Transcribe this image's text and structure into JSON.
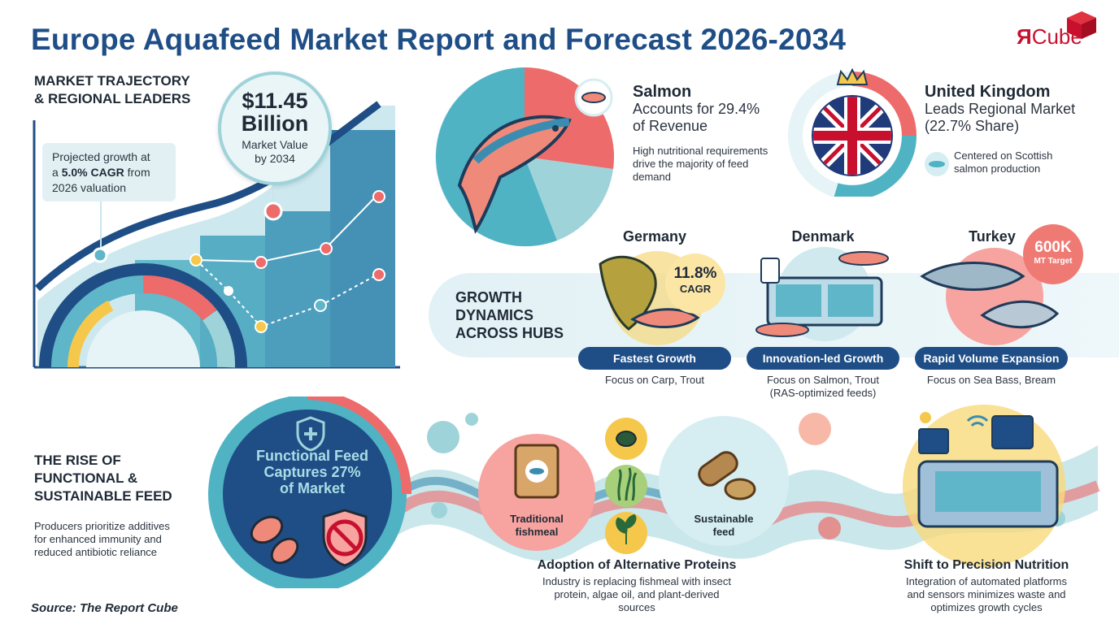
{
  "header": {
    "title": "Europe Aquafeed Market Report and Forecast 2026-2034",
    "logo_mark": "Я",
    "logo_word": "Cube"
  },
  "trajectory": {
    "heading_line1": "MARKET TRAJECTORY",
    "heading_line2": "& REGIONAL LEADERS",
    "value": "$11.45",
    "value_unit": "Billion",
    "value_label_line1": "Market Value",
    "value_label_line2": "by 2034",
    "callout_pre": "Projected growth at",
    "callout_a": "a ",
    "callout_bold": "5.0% CAGR",
    "callout_b": " from",
    "callout_post": "2026 valuation"
  },
  "salmon": {
    "title": "Salmon",
    "sub_line1": "Accounts for 29.4%",
    "sub_line2": "of Revenue",
    "note_line1": "High nutritional requirements",
    "note_line2": "drive the majority of feed",
    "note_line3": "demand"
  },
  "uk": {
    "title": "United Kingdom",
    "sub_line1": "Leads Regional Market",
    "sub_line2": "(22.7% Share)",
    "note_line1": "Centered on Scottish",
    "note_line2": "salmon production"
  },
  "hubs": {
    "heading_line1": "GROWTH",
    "heading_line2": "DYNAMICS",
    "heading_line3": "ACROSS HUBS",
    "items": [
      {
        "name": "Germany",
        "badge_value": "11.8%",
        "badge_label": "CAGR",
        "pill": "Fastest Growth",
        "note_line1": "Focus on Carp, Trout",
        "note_line2": ""
      },
      {
        "name": "Denmark",
        "pill": "Innovation-led Growth",
        "note_line1": "Focus on Salmon, Trout",
        "note_line2": "(RAS-optimized feeds)"
      },
      {
        "name": "Turkey",
        "badge_value": "600K",
        "badge_label": "MT Target",
        "pill": "Rapid Volume Expansion",
        "note_line1": "Focus on Sea Bass, Bream",
        "note_line2": ""
      }
    ]
  },
  "functional": {
    "heading_line1": "THE RISE OF",
    "heading_line2": "FUNCTIONAL &",
    "heading_line3": "SUSTAINABLE FEED",
    "note_line1": "Producers prioritize additives",
    "note_line2": "for enhanced immunity and",
    "note_line3": "reduced antibiotic reliance",
    "circle_line1": "Functional Feed",
    "circle_line2": "Captures 27%",
    "circle_line3": "of Market"
  },
  "proteins": {
    "traditional_line1": "Traditional",
    "traditional_line2": "fishmeal",
    "sustainable_line1": "Sustainable",
    "sustainable_line2": "feed",
    "title": "Adoption of Alternative Proteins",
    "note_line1": "Industry is replacing fishmeal with insect",
    "note_line2": "protein, algae oil, and plant-derived",
    "note_line3": "sources"
  },
  "precision": {
    "title": "Shift to Precision Nutrition",
    "note_line1": "Integration of automated platforms",
    "note_line2": "and sensors minimizes waste and",
    "note_line3": "optimizes growth cycles"
  },
  "source": "Source: The Report Cube",
  "colors": {
    "navy": "#1f4e86",
    "teal": "#4fb3c4",
    "coral": "#ee6b6b",
    "yellow": "#f5c84c",
    "light_teal": "#d6eef2"
  }
}
